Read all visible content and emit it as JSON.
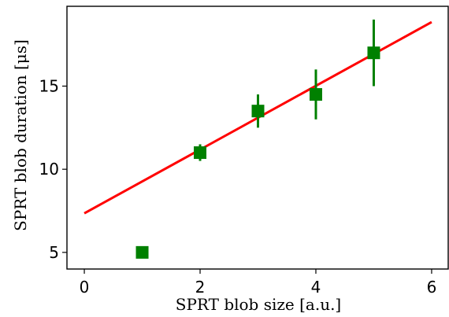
{
  "chart_data": {
    "type": "scatter",
    "xlabel": "SPRT blob size [a.u.]",
    "ylabel": "SPRT blob duration [μs]",
    "xlim": [
      -0.3,
      6.3
    ],
    "ylim": [
      4.0,
      19.8
    ],
    "xticks": [
      0,
      2,
      4,
      6
    ],
    "yticks": [
      5,
      10,
      15
    ],
    "grid": false,
    "points": {
      "color": "#008000",
      "marker": "square",
      "x": [
        1,
        2,
        3,
        4,
        5
      ],
      "y": [
        5.0,
        11.0,
        13.5,
        14.5,
        17.0
      ],
      "yerr_low": [
        0,
        0.5,
        1.0,
        1.5,
        2.0
      ],
      "yerr_high": [
        0,
        0.5,
        1.0,
        1.5,
        2.0
      ]
    },
    "fit_line": {
      "color": "#ff0000",
      "x": [
        0,
        6
      ],
      "y": [
        7.35,
        18.85
      ]
    }
  }
}
